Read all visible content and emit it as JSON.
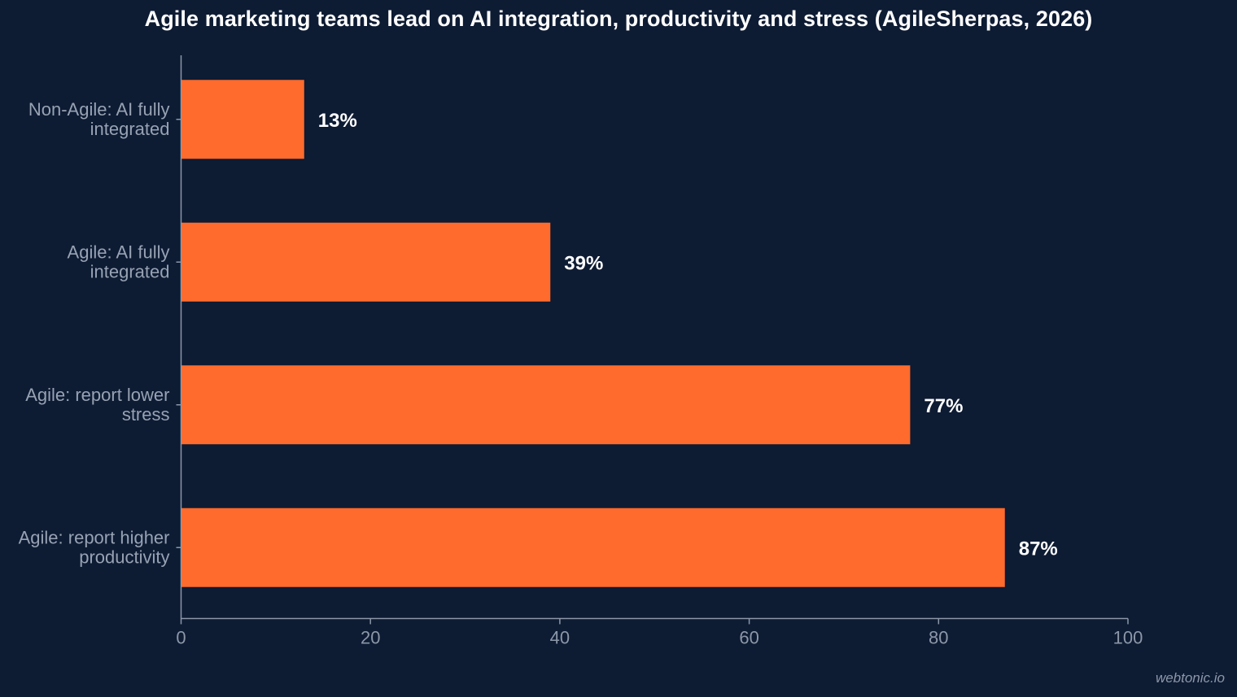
{
  "chart_data": {
    "type": "bar",
    "orientation": "horizontal",
    "title": "Agile marketing teams lead on AI integration, productivity and stress (AgileSherpas, 2026)",
    "xlabel": "",
    "ylabel": "",
    "categories": [
      [
        "Non-Agile: AI fully",
        "integrated"
      ],
      [
        "Agile: AI fully",
        "integrated"
      ],
      [
        "Agile: report lower",
        "stress"
      ],
      [
        "Agile: report higher",
        "productivity"
      ]
    ],
    "values": [
      13,
      39,
      77,
      87
    ],
    "value_labels": [
      "13%",
      "39%",
      "77%",
      "87%"
    ],
    "xlim": [
      0,
      100
    ],
    "xticks": [
      0,
      20,
      40,
      60,
      80,
      100
    ],
    "grid": false,
    "legend": "none"
  },
  "colors": {
    "background": "#0d1b33",
    "bar": "#ff6b2c",
    "axis": "#8c97a8",
    "tick_label": "#8c97a8",
    "category_label": "#97a2b3",
    "value_label": "#ffffff",
    "title": "#ffffff"
  },
  "watermark": "webtonic.io"
}
